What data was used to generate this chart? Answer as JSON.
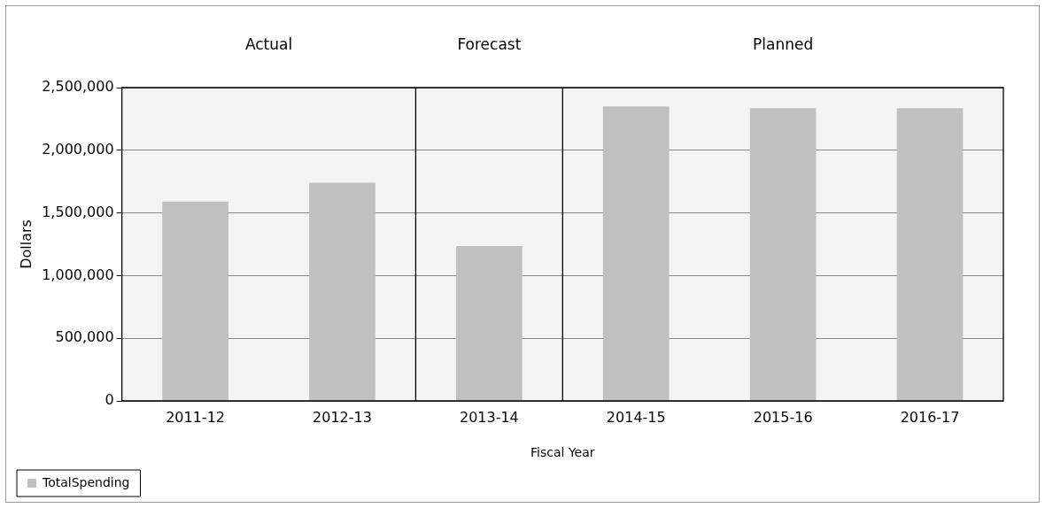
{
  "chart_data": {
    "type": "bar",
    "xlabel": "Fiscal Year",
    "ylabel": "Dollars",
    "categories": [
      "2011-12",
      "2012-13",
      "2013-14",
      "2014-15",
      "2015-16",
      "2016-17"
    ],
    "series": [
      {
        "name": "TotalSpending",
        "color": "#c0c0c0",
        "values": [
          1590000,
          1740000,
          1235000,
          2350000,
          2335000,
          2335000
        ]
      }
    ],
    "ylim": [
      0,
      2500000
    ],
    "yticks": [
      0,
      {
        "value": 500000,
        "label": "500,000"
      },
      {
        "value": 1000000,
        "label": "1,000,000"
      },
      {
        "value": 1500000,
        "label": "1,500,000"
      },
      {
        "value": 2000000,
        "label": "2,000,000"
      },
      {
        "value": 2500000,
        "label": "2,500,000"
      }
    ],
    "grid": "y",
    "legend": "bottom left",
    "bands": [
      {
        "axis": "x",
        "from": "2011-12",
        "to": "2012-13",
        "label": "Actual",
        "color": "#f4f4f4"
      },
      {
        "axis": "x",
        "from": "2013-14",
        "to": "2013-14",
        "label": "Forecast",
        "color": "#f4f4f4"
      },
      {
        "axis": "x",
        "from": "2014-15",
        "to": "2016-17",
        "label": "Planned",
        "color": "#f4f4f4"
      }
    ]
  }
}
